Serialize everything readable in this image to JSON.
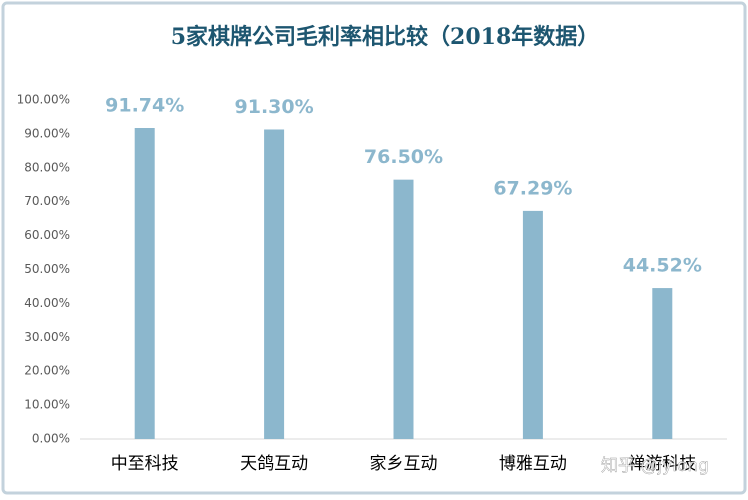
{
  "chart_data": {
    "type": "bar",
    "title": "5家棋牌公司毛利率相比较（2018年数据）",
    "categories": [
      "中至科技",
      "天鸽互动",
      "家乡互动",
      "博雅互动",
      "禅游科技"
    ],
    "values": [
      91.74,
      91.3,
      76.5,
      67.29,
      44.52
    ],
    "value_labels": [
      "91.74%",
      "91.30%",
      "76.50%",
      "67.29%",
      "44.52%"
    ],
    "color": "#8cb7cd",
    "ylim": [
      0,
      100
    ],
    "yticks": [
      {
        "value": 0,
        "label": "0.00%"
      },
      {
        "value": 10,
        "label": "10.00%"
      },
      {
        "value": 20,
        "label": "20.00%"
      },
      {
        "value": 30,
        "label": "30.00%"
      },
      {
        "value": 40,
        "label": "40.00%"
      },
      {
        "value": 50,
        "label": "50.00%"
      },
      {
        "value": 60,
        "label": "60.00%"
      },
      {
        "value": 70,
        "label": "70.00%"
      },
      {
        "value": 80,
        "label": "80.00%"
      },
      {
        "value": 90,
        "label": "90.00%"
      },
      {
        "value": 100,
        "label": "100.00%"
      }
    ],
    "grid": false,
    "watermark": "知乎 @jylong"
  }
}
